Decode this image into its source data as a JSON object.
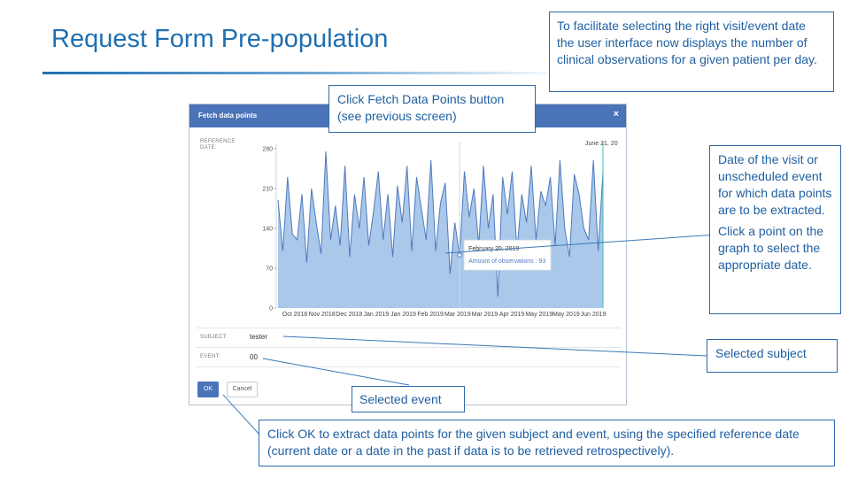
{
  "slide": {
    "title": "Request Form Pre-population",
    "top_right_note": "To facilitate selecting the right visit/event date the user interface now displays the number of clinical observations for a given patient per day."
  },
  "callouts": {
    "fetch": "Click Fetch Data Points button (see previous screen)",
    "date_1": "Date of the visit or unscheduled event for which data points are to be extracted.",
    "date_2": "Click a point on the graph to select the appropriate date.",
    "subject": "Selected subject",
    "event": "Selected event",
    "ok": "Click OK to extract data points for the given subject and event, using the specified reference date (current date or a date in the past if data is to be retrieved retrospectively)."
  },
  "dialog": {
    "title": "Fetch data points",
    "close_glyph": "×",
    "reference_label_1": "REFERENCE",
    "reference_label_2": "DATE:",
    "reference_value": "June 21, 20",
    "subject_label": "SUBJECT:",
    "subject_value": "tester",
    "event_label": "EVENT:",
    "event_value": "00",
    "ok_label": "OK",
    "cancel_label": "Cancel",
    "tooltip": {
      "date": "February 20, 2019",
      "text": "Amount of observations : 93"
    }
  },
  "colors": {
    "accent": "#4b73b8",
    "area_fill": "#a9c8ea",
    "line": "#4f79bd",
    "callout_text": "#1f5fa0"
  },
  "chart_data": {
    "type": "area",
    "title": "",
    "xlabel": "",
    "ylabel": "",
    "ylim": [
      0,
      280
    ],
    "y_ticks": [
      "0",
      "70",
      "140",
      "210",
      "280"
    ],
    "x_ticks": [
      "Oct 2018",
      "Nov 2018",
      "Dec 2018",
      "Jan 2019",
      "Jan 2019",
      "Feb 2019",
      "Mar 2019",
      "Mar 2019",
      "Apr 2019",
      "May 2019",
      "May 2019",
      "Jun 2019"
    ],
    "x": [
      "2018-09-21",
      "2018-09-25",
      "2018-09-29",
      "2018-10-03",
      "2018-10-07",
      "2018-10-11",
      "2018-10-15",
      "2018-10-19",
      "2018-10-23",
      "2018-10-27",
      "2018-10-31",
      "2018-11-04",
      "2018-11-08",
      "2018-11-12",
      "2018-11-16",
      "2018-11-20",
      "2018-11-24",
      "2018-11-28",
      "2018-12-02",
      "2018-12-06",
      "2018-12-10",
      "2018-12-14",
      "2018-12-18",
      "2018-12-22",
      "2018-12-26",
      "2018-12-30",
      "2019-01-03",
      "2019-01-07",
      "2019-01-11",
      "2019-01-15",
      "2019-01-19",
      "2019-01-23",
      "2019-01-27",
      "2019-01-31",
      "2019-02-04",
      "2019-02-08",
      "2019-02-12",
      "2019-02-16",
      "2019-02-20",
      "2019-02-24",
      "2019-02-28",
      "2019-03-04",
      "2019-03-08",
      "2019-03-12",
      "2019-03-16",
      "2019-03-20",
      "2019-03-24",
      "2019-03-28",
      "2019-04-01",
      "2019-04-05",
      "2019-04-09",
      "2019-04-13",
      "2019-04-17",
      "2019-04-21",
      "2019-04-25",
      "2019-04-29",
      "2019-05-03",
      "2019-05-07",
      "2019-05-11",
      "2019-05-15",
      "2019-05-19",
      "2019-05-23",
      "2019-05-27",
      "2019-05-31",
      "2019-06-04",
      "2019-06-08",
      "2019-06-12",
      "2019-06-16",
      "2019-06-20"
    ],
    "values": [
      190,
      100,
      230,
      130,
      120,
      200,
      80,
      210,
      150,
      95,
      275,
      120,
      180,
      110,
      250,
      90,
      200,
      140,
      230,
      110,
      170,
      240,
      120,
      200,
      90,
      215,
      150,
      250,
      100,
      230,
      175,
      120,
      260,
      100,
      185,
      220,
      60,
      150,
      93,
      240,
      160,
      210,
      110,
      250,
      140,
      200,
      20,
      230,
      165,
      240,
      100,
      200,
      150,
      250,
      120,
      205,
      180,
      230,
      110,
      260,
      140,
      90,
      235,
      200,
      140,
      120,
      260,
      100,
      240
    ],
    "grid": false,
    "legend": "none"
  }
}
